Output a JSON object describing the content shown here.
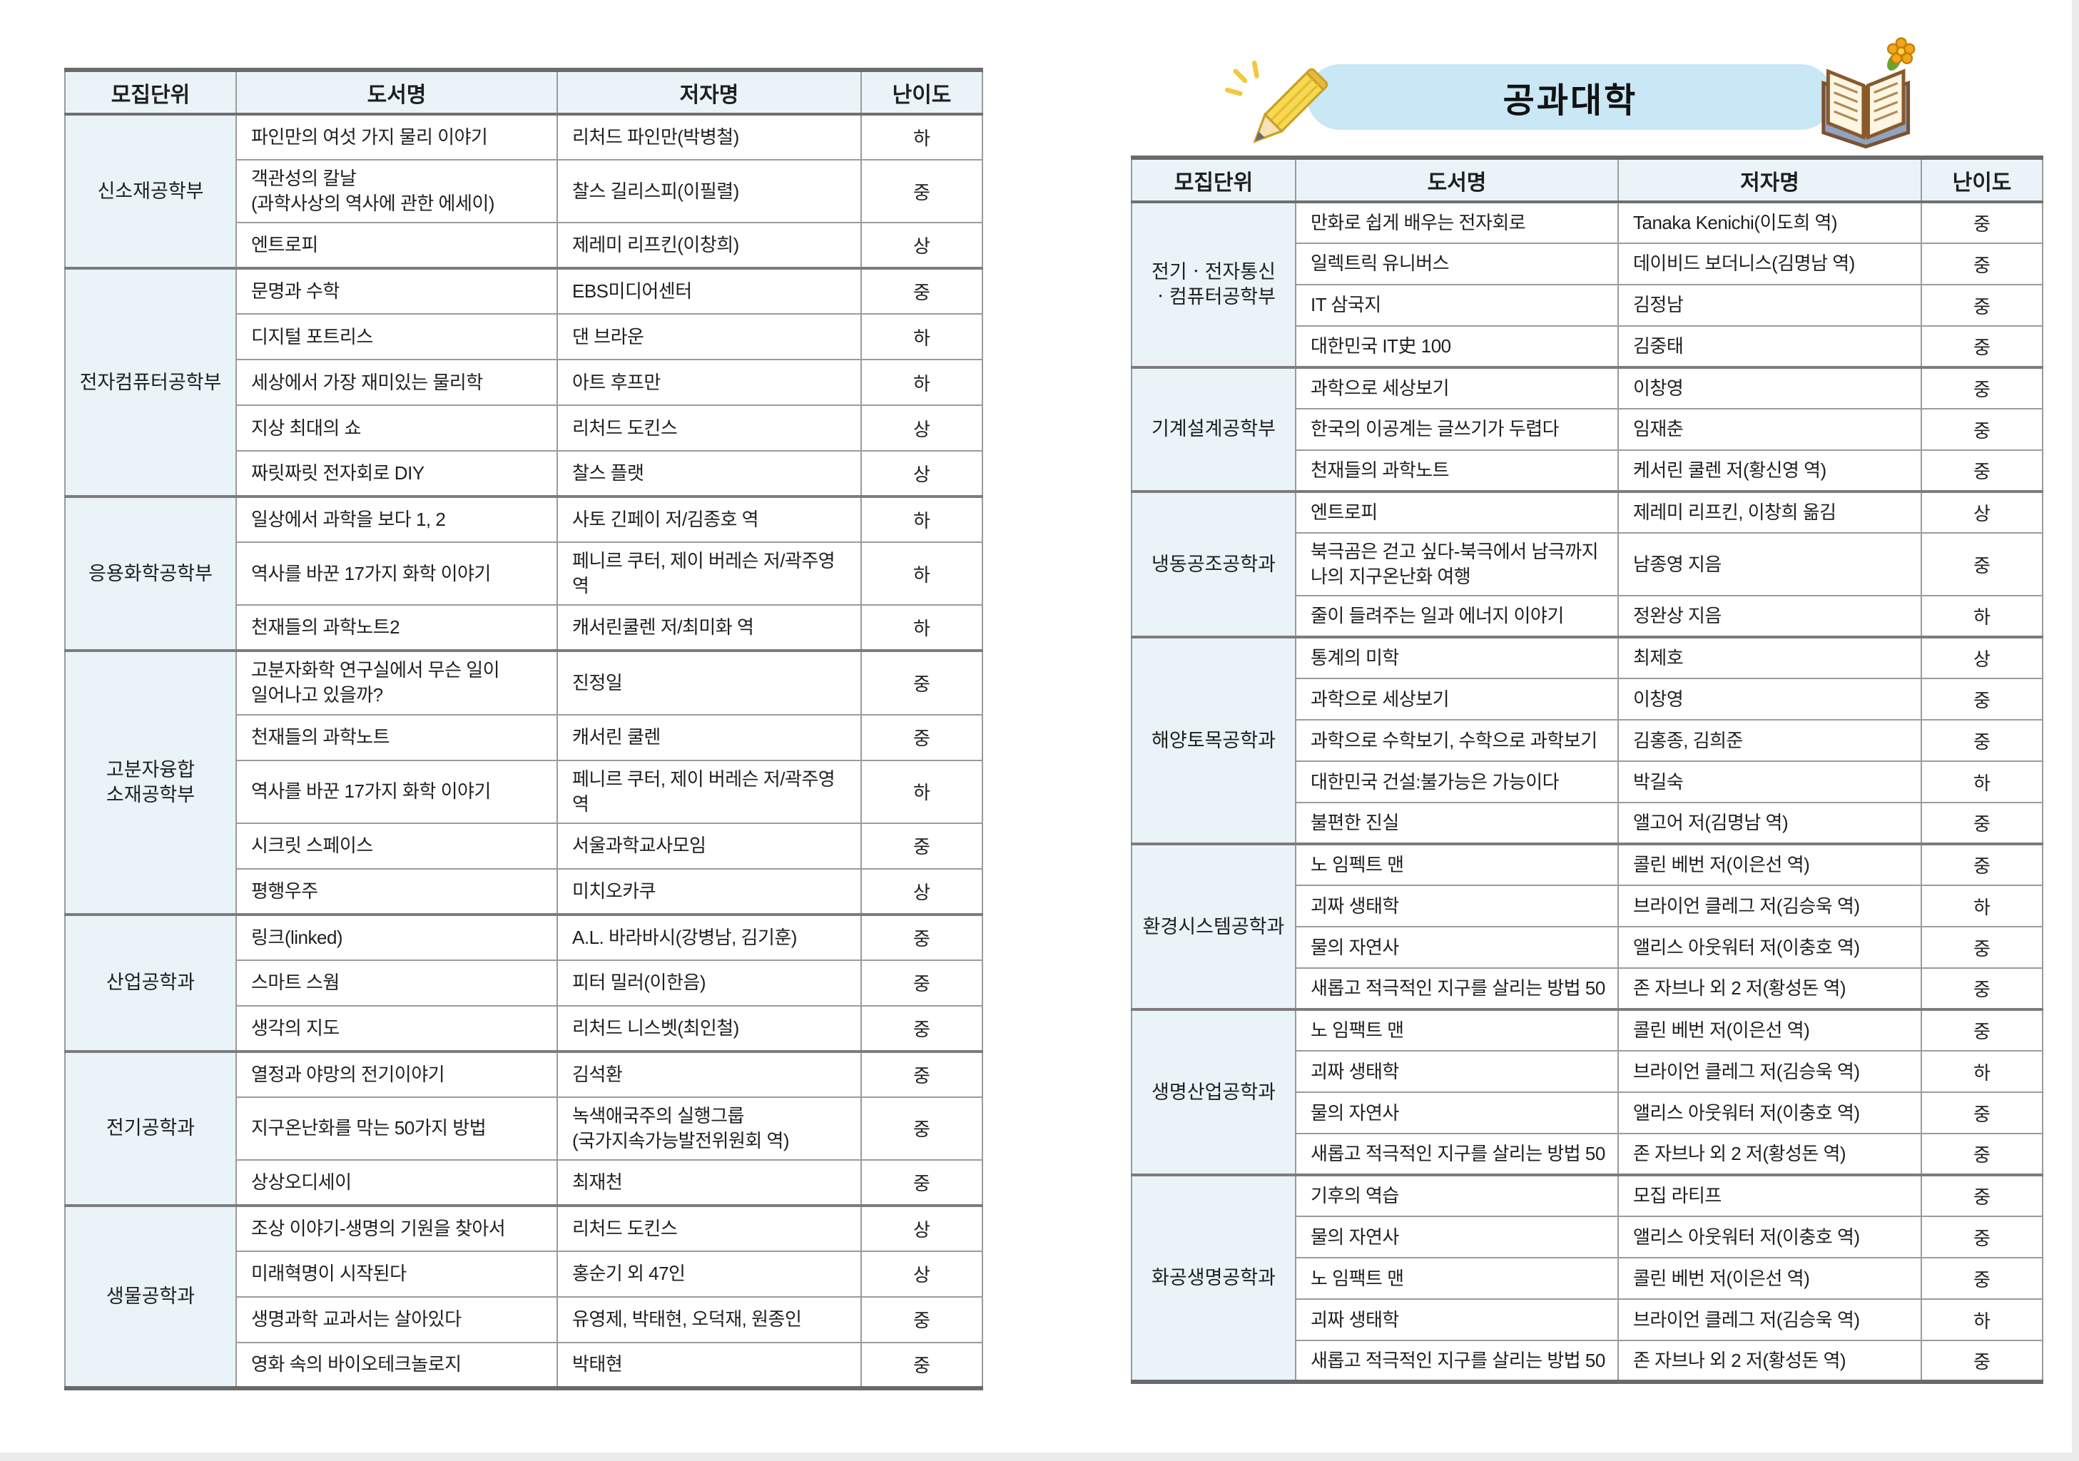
{
  "page": {
    "banner_title": "공과대학"
  },
  "icons": {
    "left_of_banner": "pencil-icon",
    "right_of_banner": "open-book-icon",
    "on_book": "flower-icon"
  },
  "colors": {
    "header_bg": "#eaf4f8",
    "unit_col_bg": "#e9f3f8",
    "banner_bg": "#c9e7f5",
    "border_dark": "#6a6a6a",
    "border_mid": "#7c7c7c",
    "border_light": "#9b9b9b"
  },
  "difficulty_levels": [
    "하",
    "중",
    "상"
  ],
  "tables": {
    "left": {
      "columns": [
        "모집단위",
        "도서명",
        "저자명",
        "난이도"
      ],
      "groups": [
        {
          "unit": "신소재공학부",
          "rows": [
            {
              "title": "파인만의 여섯 가지 물리 이야기",
              "author": "리처드 파인만(박병철)",
              "level": "하"
            },
            {
              "title": "객관성의 칼날\n(과학사상의 역사에 관한 에세이)",
              "author": "찰스 길리스피(이필렬)",
              "level": "중"
            },
            {
              "title": "엔트로피",
              "author": "제레미 리프킨(이창희)",
              "level": "상"
            }
          ]
        },
        {
          "unit": "전자컴퓨터공학부",
          "rows": [
            {
              "title": "문명과 수학",
              "author": "EBS미디어센터",
              "level": "중"
            },
            {
              "title": "디지털 포트리스",
              "author": "댄 브라운",
              "level": "하"
            },
            {
              "title": "세상에서 가장 재미있는 물리학",
              "author": "아트 후프만",
              "level": "하"
            },
            {
              "title": "지상 최대의 쇼",
              "author": "리처드 도킨스",
              "level": "상"
            },
            {
              "title": "짜릿짜릿 전자회로 DIY",
              "author": "찰스 플랫",
              "level": "상"
            }
          ]
        },
        {
          "unit": "응용화학공학부",
          "rows": [
            {
              "title": "일상에서 과학을 보다 1, 2",
              "author": "사토 긴페이 저/김종호 역",
              "level": "하"
            },
            {
              "title": "역사를 바꾼 17가지 화학 이야기",
              "author": "페니르 쿠터, 제이 버레슨 저/곽주영 역",
              "level": "하"
            },
            {
              "title": "천재들의 과학노트2",
              "author": "캐서린쿨렌 저/최미화 역",
              "level": "하"
            }
          ]
        },
        {
          "unit": "고분자융합\n소재공학부",
          "rows": [
            {
              "title": "고분자화학 연구실에서 무슨 일이\n일어나고 있을까?",
              "author": "진정일",
              "level": "중"
            },
            {
              "title": "천재들의 과학노트",
              "author": "캐서린 쿨렌",
              "level": "중"
            },
            {
              "title": "역사를 바꾼 17가지 화학 이야기",
              "author": "페니르 쿠터, 제이 버레슨 저/곽주영 역",
              "level": "하"
            },
            {
              "title": "시크릿 스페이스",
              "author": "서울과학교사모임",
              "level": "중"
            },
            {
              "title": "평행우주",
              "author": "미치오카쿠",
              "level": "상"
            }
          ]
        },
        {
          "unit": "산업공학과",
          "rows": [
            {
              "title": "링크(linked)",
              "author": "A.L. 바라바시(강병남, 김기훈)",
              "level": "중"
            },
            {
              "title": "스마트 스웜",
              "author": "피터 밀러(이한음)",
              "level": "중"
            },
            {
              "title": "생각의 지도",
              "author": "리처드 니스벳(최인철)",
              "level": "중"
            }
          ]
        },
        {
          "unit": "전기공학과",
          "rows": [
            {
              "title": "열정과 야망의 전기이야기",
              "author": "김석환",
              "level": "중"
            },
            {
              "title": "지구온난화를 막는 50가지 방법",
              "author": "녹색애국주의 실행그룹\n(국가지속가능발전위원회 역)",
              "level": "중"
            },
            {
              "title": "상상오디세이",
              "author": "최재천",
              "level": "중"
            }
          ]
        },
        {
          "unit": "생물공학과",
          "rows": [
            {
              "title": "조상 이야기-생명의 기원을 찾아서",
              "author": "리처드 도킨스",
              "level": "상"
            },
            {
              "title": "미래혁명이 시작된다",
              "author": "홍순기 외 47인",
              "level": "상"
            },
            {
              "title": "생명과학 교과서는 살아있다",
              "author": "유영제, 박태현, 오덕재, 원종인",
              "level": "중"
            },
            {
              "title": "영화 속의 바이오테크놀로지",
              "author": "박태현",
              "level": "중"
            }
          ]
        }
      ]
    },
    "right": {
      "columns": [
        "모집단위",
        "도서명",
        "저자명",
        "난이도"
      ],
      "groups": [
        {
          "unit": "전기ㆍ전자통신\nㆍ컴퓨터공학부",
          "rows": [
            {
              "title": "만화로 쉽게 배우는 전자회로",
              "author": "Tanaka Kenichi(이도희 역)",
              "level": "중"
            },
            {
              "title": "일렉트릭 유니버스",
              "author": "데이비드 보더니스(김명남 역)",
              "level": "중"
            },
            {
              "title": "IT 삼국지",
              "author": "김정남",
              "level": "중"
            },
            {
              "title": "대한민국 IT史 100",
              "author": "김중태",
              "level": "중"
            }
          ]
        },
        {
          "unit": "기계설계공학부",
          "rows": [
            {
              "title": "과학으로 세상보기",
              "author": "이창영",
              "level": "중"
            },
            {
              "title": "한국의 이공계는 글쓰기가 두렵다",
              "author": "임재춘",
              "level": "중"
            },
            {
              "title": "천재들의 과학노트",
              "author": "케서린 쿨렌 저(황신영 역)",
              "level": "중"
            }
          ]
        },
        {
          "unit": "냉동공조공학과",
          "rows": [
            {
              "title": "엔트로피",
              "author": "제레미 리프킨, 이창희 옮김",
              "level": "상"
            },
            {
              "title": "북극곰은 걷고 싶다-북극에서 남극까지\n나의 지구온난화 여행",
              "author": "남종영 지음",
              "level": "중"
            },
            {
              "title": "줄이 들려주는 일과 에너지 이야기",
              "author": "정완상 지음",
              "level": "하"
            }
          ]
        },
        {
          "unit": "해양토목공학과",
          "rows": [
            {
              "title": "통계의 미학",
              "author": "최제호",
              "level": "상"
            },
            {
              "title": "과학으로 세상보기",
              "author": "이창영",
              "level": "중"
            },
            {
              "title": "과학으로 수학보기, 수학으로 과학보기",
              "author": "김홍종, 김희준",
              "level": "중"
            },
            {
              "title": "대한민국 건설:불가능은 가능이다",
              "author": "박길숙",
              "level": "하"
            },
            {
              "title": "불편한 진실",
              "author": "앨고어 저(김명남 역)",
              "level": "중"
            }
          ]
        },
        {
          "unit": "환경시스템공학과",
          "rows": [
            {
              "title": "노 임펙트 맨",
              "author": "콜린 베번 저(이은선 역)",
              "level": "중"
            },
            {
              "title": "괴짜 생태학",
              "author": "브라이언 클레그 저(김승욱 역)",
              "level": "하"
            },
            {
              "title": "물의 자연사",
              "author": "앨리스 아웃워터 저(이충호 역)",
              "level": "중"
            },
            {
              "title": "새롭고 적극적인 지구를 살리는 방법 50",
              "author": "존 자브나 외 2 저(황성돈 역)",
              "level": "중"
            }
          ]
        },
        {
          "unit": "생명산업공학과",
          "rows": [
            {
              "title": "노 임팩트 맨",
              "author": "콜린 베번 저(이은선 역)",
              "level": "중"
            },
            {
              "title": "괴짜 생태학",
              "author": "브라이언 클레그 저(김승욱 역)",
              "level": "하"
            },
            {
              "title": "물의 자연사",
              "author": "앨리스 아웃워터 저(이충호 역)",
              "level": "중"
            },
            {
              "title": "새롭고 적극적인 지구를 살리는 방법 50",
              "author": "존 자브나 외 2 저(황성돈 역)",
              "level": "중"
            }
          ]
        },
        {
          "unit": "화공생명공학과",
          "rows": [
            {
              "title": "기후의 역습",
              "author": "모집 라티프",
              "level": "중"
            },
            {
              "title": "물의 자연사",
              "author": "앨리스 아웃워터 저(이충호 역)",
              "level": "중"
            },
            {
              "title": "노 임팩트 맨",
              "author": "콜린 베번 저(이은선 역)",
              "level": "중"
            },
            {
              "title": "괴짜 생태학",
              "author": "브라이언 클레그 저(김승욱 역)",
              "level": "하"
            },
            {
              "title": "새롭고 적극적인 지구를 살리는 방법 50",
              "author": "존 자브나 외 2 저(황성돈 역)",
              "level": "중"
            }
          ]
        }
      ]
    }
  }
}
